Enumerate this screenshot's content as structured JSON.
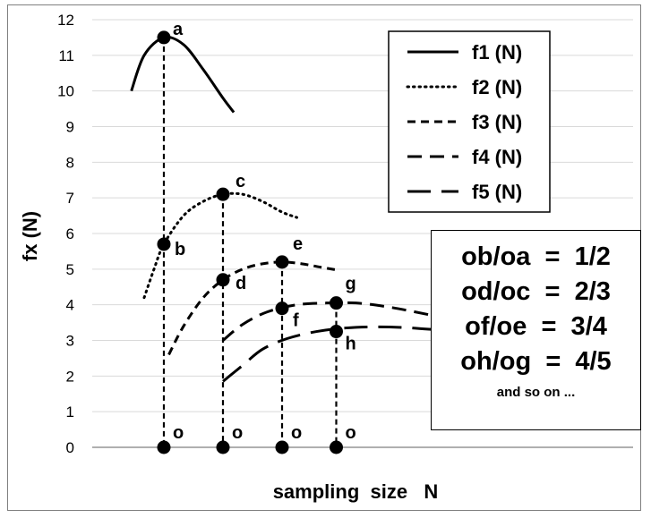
{
  "chart_data": {
    "type": "line",
    "xlabel": "sampling  size   N",
    "ylabel": "fx (N)",
    "ylim": [
      0,
      12
    ],
    "yticks": [
      0,
      1,
      2,
      3,
      4,
      5,
      6,
      7,
      8,
      9,
      10,
      11,
      12
    ],
    "grid": "horizontal",
    "legend": "top-right",
    "series": [
      {
        "name": "f1 (N)",
        "style": "solid",
        "points": [
          [
            0.62,
            10.0
          ],
          [
            0.75,
            11.0
          ],
          [
            0.95,
            11.5
          ],
          [
            1.15,
            11.3
          ],
          [
            1.35,
            10.6
          ],
          [
            1.55,
            9.8
          ],
          [
            1.66,
            9.4
          ]
        ]
      },
      {
        "name": "f2 (N)",
        "style": "dotted",
        "points": [
          [
            0.75,
            4.2
          ],
          [
            0.85,
            5.0
          ],
          [
            0.95,
            5.7
          ],
          [
            1.15,
            6.5
          ],
          [
            1.35,
            6.9
          ],
          [
            1.55,
            7.1
          ],
          [
            1.75,
            7.1
          ],
          [
            1.95,
            6.9
          ],
          [
            2.15,
            6.6
          ],
          [
            2.3,
            6.45
          ]
        ]
      },
      {
        "name": "f3 (N)",
        "style": "dashed",
        "points": [
          [
            1.0,
            2.6
          ],
          [
            1.15,
            3.4
          ],
          [
            1.35,
            4.2
          ],
          [
            1.55,
            4.7
          ],
          [
            1.75,
            5.0
          ],
          [
            1.95,
            5.15
          ],
          [
            2.15,
            5.2
          ],
          [
            2.35,
            5.15
          ],
          [
            2.55,
            5.05
          ],
          [
            2.7,
            4.98
          ]
        ]
      },
      {
        "name": "f4 (N)",
        "style": "long-dash",
        "points": [
          [
            1.55,
            3.0
          ],
          [
            1.75,
            3.45
          ],
          [
            2.0,
            3.8
          ],
          [
            2.3,
            4.0
          ],
          [
            2.6,
            4.05
          ],
          [
            2.9,
            4.05
          ],
          [
            3.2,
            3.95
          ],
          [
            3.5,
            3.8
          ],
          [
            3.85,
            3.6
          ]
        ]
      },
      {
        "name": "f5 (N)",
        "style": "longer-dash",
        "points": [
          [
            1.55,
            1.85
          ],
          [
            1.75,
            2.3
          ],
          [
            1.95,
            2.75
          ],
          [
            2.2,
            3.05
          ],
          [
            2.5,
            3.25
          ],
          [
            2.8,
            3.35
          ],
          [
            3.1,
            3.38
          ],
          [
            3.4,
            3.36
          ],
          [
            3.7,
            3.3
          ]
        ]
      }
    ],
    "points": [
      {
        "label": "a",
        "x": 0.95,
        "y": 11.5
      },
      {
        "label": "b",
        "x": 0.95,
        "y": 5.7
      },
      {
        "label": "c",
        "x": 1.55,
        "y": 7.1
      },
      {
        "label": "d",
        "x": 1.55,
        "y": 4.7
      },
      {
        "label": "e",
        "x": 2.15,
        "y": 5.2
      },
      {
        "label": "f",
        "x": 2.15,
        "y": 3.9
      },
      {
        "label": "g",
        "x": 2.7,
        "y": 4.05
      },
      {
        "label": "h",
        "x": 2.7,
        "y": 3.25
      },
      {
        "label": "o",
        "x": 0.95,
        "y": 0
      },
      {
        "label": "o",
        "x": 1.55,
        "y": 0
      },
      {
        "label": "o",
        "x": 2.15,
        "y": 0
      },
      {
        "label": "o",
        "x": 2.7,
        "y": 0
      }
    ],
    "drops": [
      {
        "x": 0.95,
        "y": 11.5
      },
      {
        "x": 1.55,
        "y": 7.1
      },
      {
        "x": 2.15,
        "y": 5.2
      },
      {
        "x": 2.7,
        "y": 4.05
      }
    ]
  },
  "ratios": {
    "lines": [
      "ob/oa  =  1/2",
      "od/oc  =  2/3",
      "of/oe  =  3/4",
      "oh/og  =  4/5"
    ],
    "note": "and so on ..."
  }
}
